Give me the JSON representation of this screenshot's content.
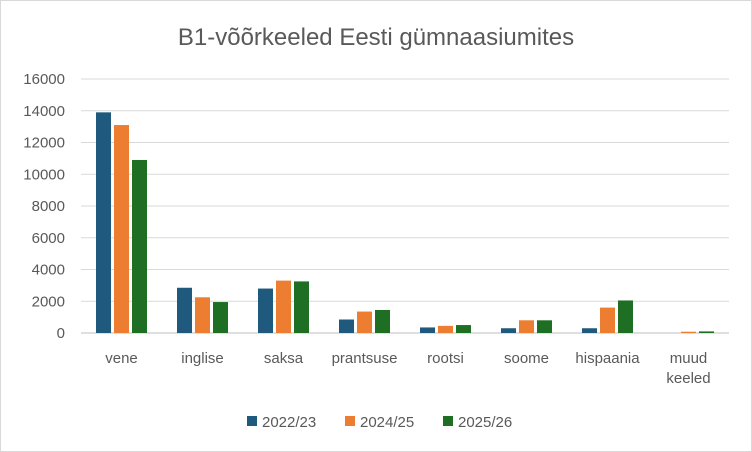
{
  "chart_data": {
    "type": "bar",
    "title": "B1-võõrkeeled Eesti gümnaasiumites",
    "xlabel": "",
    "ylabel": "",
    "ylim": [
      0,
      16000
    ],
    "yticks": [
      0,
      2000,
      4000,
      6000,
      8000,
      10000,
      12000,
      14000,
      16000
    ],
    "yticks_labels": [
      "0",
      "2000",
      "4000",
      "6000",
      "8000",
      "10000",
      "12000",
      "14000",
      "16000"
    ],
    "grid": true,
    "legend_position": "bottom",
    "categories": [
      "vene",
      "inglise",
      "saksa",
      "prantsuse",
      "rootsi",
      "soome",
      "hispaania",
      "muud keeled"
    ],
    "series": [
      {
        "name": "2022/23",
        "color": "#1f5a7e",
        "values": [
          13900,
          2850,
          2800,
          850,
          350,
          300,
          300,
          0
        ]
      },
      {
        "name": "2024/25",
        "color": "#ed7d31",
        "values": [
          13100,
          2250,
          3300,
          1350,
          450,
          800,
          1600,
          80
        ]
      },
      {
        "name": "2025/26",
        "color": "#1e6e23",
        "values": [
          10900,
          1950,
          3250,
          1450,
          500,
          800,
          2050,
          100
        ]
      }
    ]
  }
}
